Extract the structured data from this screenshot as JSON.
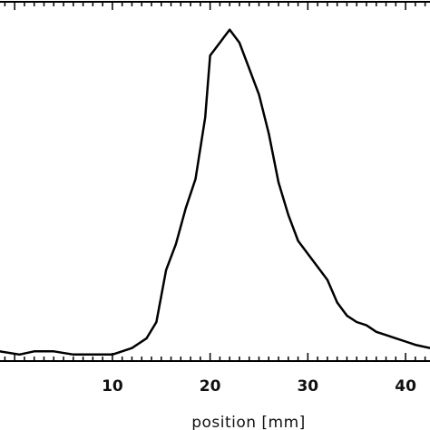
{
  "chart_data": {
    "type": "line",
    "title": "",
    "xlabel": "position [mm]",
    "ylabel": "",
    "xlim": [
      -1.5,
      42.5
    ],
    "ylim": [
      0,
      1.1
    ],
    "x_ticks": [
      10,
      20,
      30,
      40
    ],
    "x_tick_labels": [
      "10",
      "20",
      "30",
      "40"
    ],
    "grid": false,
    "series": [
      {
        "values_x": [
          -1.5,
          0.5,
          2,
          4,
          6,
          8,
          10,
          12,
          13.5,
          14.5,
          15.5,
          16.5,
          17.5,
          18.5,
          19.5,
          20,
          21,
          21.5,
          22,
          23,
          24,
          25,
          26,
          27,
          28,
          29,
          30,
          31,
          32,
          33,
          34,
          35,
          36,
          37,
          38,
          39,
          40,
          41,
          42.5
        ],
        "values_y": [
          0.03,
          0.02,
          0.03,
          0.03,
          0.02,
          0.02,
          0.02,
          0.04,
          0.07,
          0.12,
          0.28,
          0.36,
          0.47,
          0.56,
          0.75,
          0.94,
          0.98,
          1.0,
          1.02,
          0.98,
          0.9,
          0.82,
          0.7,
          0.55,
          0.45,
          0.37,
          0.33,
          0.29,
          0.25,
          0.18,
          0.14,
          0.12,
          0.11,
          0.09,
          0.08,
          0.07,
          0.06,
          0.05,
          0.04
        ]
      }
    ]
  },
  "colors": {
    "line": "#000000",
    "frame": "#000000",
    "background": "#ffffff"
  }
}
